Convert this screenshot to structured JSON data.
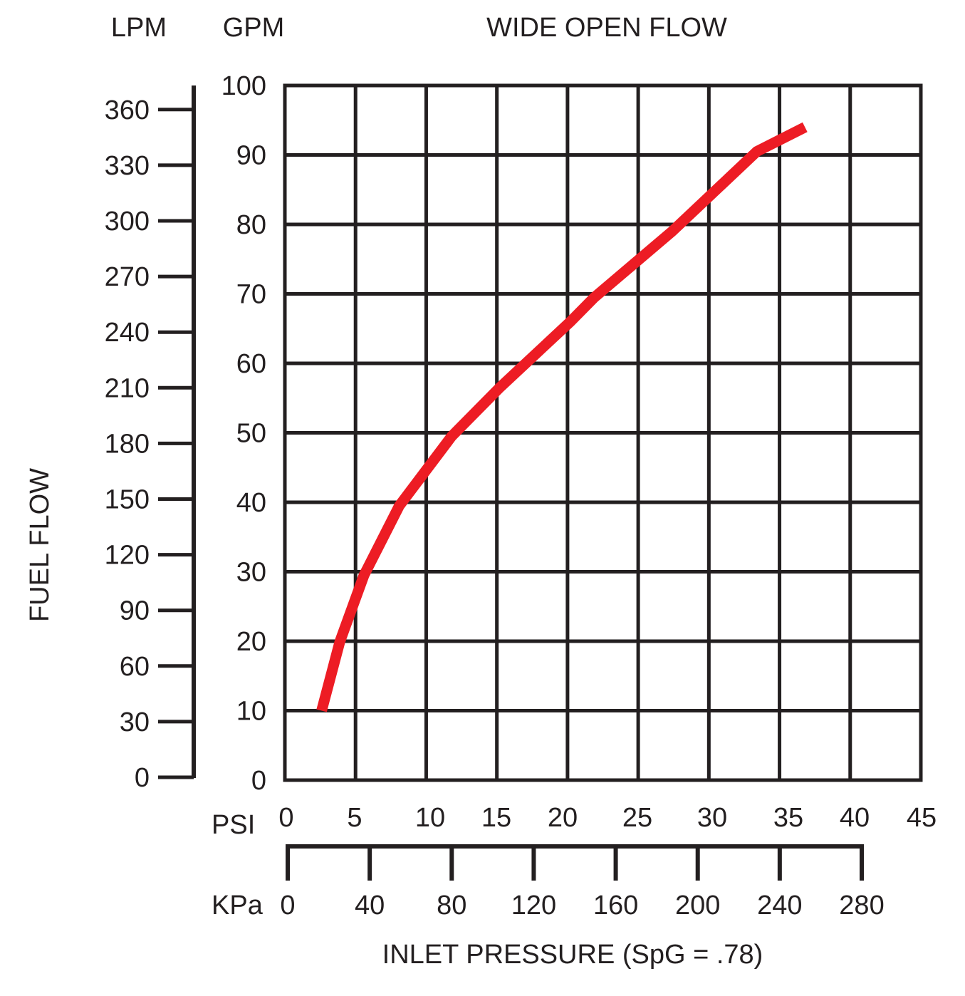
{
  "chart_data": {
    "type": "line",
    "title": "WIDE OPEN FLOW",
    "ylabel": "FUEL FLOW",
    "y_unit_primary": "GPM",
    "y_unit_secondary": "LPM",
    "xlabel": "INLET PRESSURE (SpG = .78)",
    "x_unit_primary": "PSI",
    "x_unit_secondary": "KPa",
    "xlim": [
      0,
      45
    ],
    "ylim": [
      0,
      100
    ],
    "gpm_ticks": [
      "0",
      "10",
      "20",
      "30",
      "40",
      "50",
      "60",
      "70",
      "80",
      "90",
      "100"
    ],
    "lpm_ticks": [
      "0",
      "30",
      "60",
      "90",
      "120",
      "150",
      "180",
      "210",
      "240",
      "270",
      "300",
      "330",
      "360"
    ],
    "psi_ticks": [
      "0",
      "5",
      "10",
      "15",
      "20",
      "25",
      "30",
      "35",
      "40",
      "45"
    ],
    "kpa_ticks": [
      "0",
      "40",
      "80",
      "120",
      "160",
      "200",
      "240",
      "280"
    ],
    "grid": true,
    "line_color": "#ed1c24",
    "series": [
      {
        "x": [
          2.6,
          3.9,
          5.6,
          8.1,
          11.8,
          15.2,
          20.2,
          21.9,
          27.4,
          33.4,
          36.8
        ],
        "y": [
          10,
          20,
          29.5,
          39.5,
          49.5,
          56.5,
          66,
          69.5,
          79,
          90.5,
          94
        ]
      }
    ]
  }
}
